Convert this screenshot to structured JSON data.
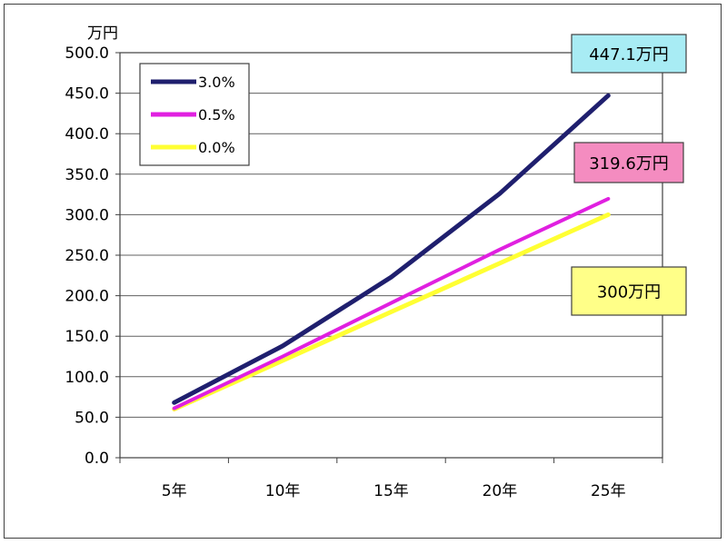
{
  "chart_data": {
    "type": "line",
    "title": "",
    "xlabel": "",
    "ylabel": "万円",
    "categories": [
      "5年",
      "10年",
      "15年",
      "20年",
      "25年"
    ],
    "ylim": [
      0,
      500
    ],
    "yticks": [
      "0.0",
      "50.0",
      "100.0",
      "150.0",
      "200.0",
      "250.0",
      "300.0",
      "350.0",
      "400.0",
      "450.0",
      "500.0"
    ],
    "grid": true,
    "legend_position": "top-left",
    "series": [
      {
        "name": "3.0%",
        "color": "#1f1f6e",
        "values": [
          68.0,
          138.0,
          223.0,
          326.0,
          447.1
        ]
      },
      {
        "name": "0.5%",
        "color": "#e020e0",
        "values": [
          61.0,
          125.0,
          191.0,
          257.0,
          319.6
        ]
      },
      {
        "name": "0.0%",
        "color": "#ffff33",
        "values": [
          60.0,
          120.0,
          180.0,
          240.0,
          300.0
        ]
      }
    ],
    "annotations": [
      {
        "text": "447.1万円",
        "series": "3.0%",
        "fill": "#a8ecf4"
      },
      {
        "text": "319.6万円",
        "series": "0.5%",
        "fill": "#f48cc0"
      },
      {
        "text": "300万円",
        "series": "0.0%",
        "fill": "#ffff88"
      }
    ]
  }
}
